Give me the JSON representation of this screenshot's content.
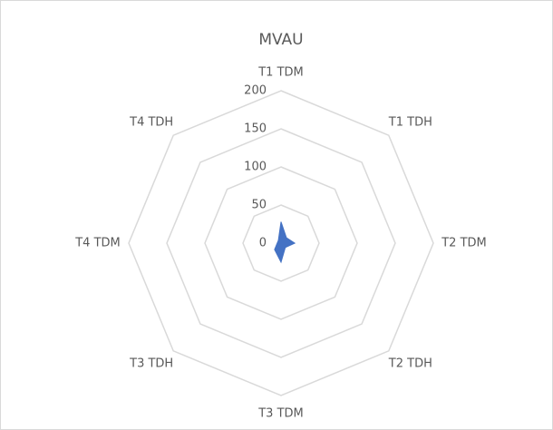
{
  "chart_data": {
    "type": "radar",
    "title": "MVAU",
    "categories": [
      "T1 TDM",
      "T1 TDH",
      "T2 TDM",
      "T2 TDH",
      "T3 TDM",
      "T3 TDH",
      "T4 TDM",
      "T4 TDH"
    ],
    "series": [
      {
        "name": "MVAU",
        "color": "#4472c4",
        "values": [
          28,
          10,
          18,
          8,
          25,
          12,
          5,
          5
        ]
      }
    ],
    "rlim": [
      0,
      200
    ],
    "rticks": [
      0,
      50,
      100,
      150,
      200
    ],
    "grid": true
  }
}
